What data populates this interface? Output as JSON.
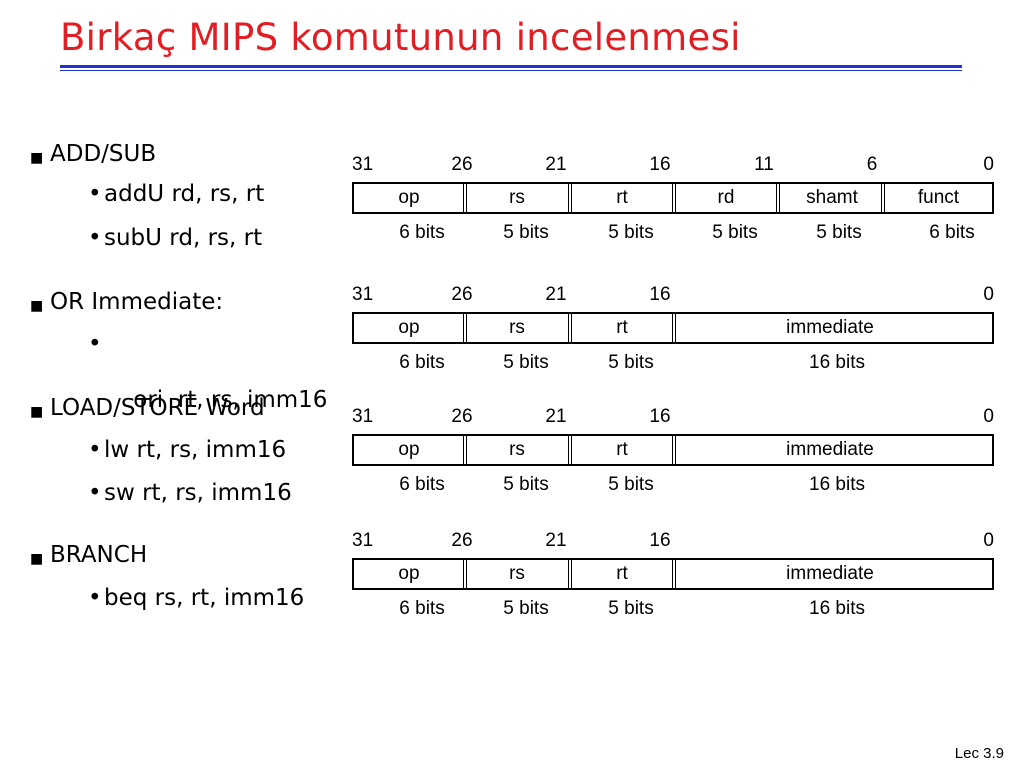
{
  "slide": {
    "title": "Birkaç MIPS komutunun incelenmesi",
    "accent_color": "#e21d24",
    "rule_color": "#1f32d0",
    "footer": "Lec 3.9"
  },
  "bullets": [
    {
      "label": "ADD/SUB",
      "subitems": [
        "addU rd, rs, rt",
        "subU rd, rs, rt"
      ]
    },
    {
      "label": "OR Immediate:",
      "subitems": [
        "ori  rt, rs, imm16"
      ]
    },
    {
      "label": "LOAD/STORE Word",
      "subitems": [
        "lw rt, rs, imm16",
        "sw rt, rs, imm16"
      ]
    },
    {
      "label": "BRANCH",
      "subitems": [
        "beq rs, rt, imm16"
      ]
    }
  ],
  "formats": [
    {
      "bit_positions": [
        "31",
        "26",
        "21",
        "16",
        "11",
        "6",
        "0"
      ],
      "fields": [
        {
          "name": "op",
          "bits": "6 bits"
        },
        {
          "name": "rs",
          "bits": "5 bits"
        },
        {
          "name": "rt",
          "bits": "5 bits"
        },
        {
          "name": "rd",
          "bits": "5 bits"
        },
        {
          "name": "shamt",
          "bits": "5 bits"
        },
        {
          "name": "funct",
          "bits": "6 bits"
        }
      ]
    },
    {
      "bit_positions": [
        "31",
        "26",
        "21",
        "16",
        "0"
      ],
      "fields": [
        {
          "name": "op",
          "bits": "6 bits"
        },
        {
          "name": "rs",
          "bits": "5 bits"
        },
        {
          "name": "rt",
          "bits": "5 bits"
        },
        {
          "name": "immediate",
          "bits": "16 bits"
        }
      ]
    },
    {
      "bit_positions": [
        "31",
        "26",
        "21",
        "16",
        "0"
      ],
      "fields": [
        {
          "name": "op",
          "bits": "6 bits"
        },
        {
          "name": "rs",
          "bits": "5 bits"
        },
        {
          "name": "rt",
          "bits": "5 bits"
        },
        {
          "name": "immediate",
          "bits": "16 bits"
        }
      ]
    },
    {
      "bit_positions": [
        "31",
        "26",
        "21",
        "16",
        "0"
      ],
      "fields": [
        {
          "name": "op",
          "bits": "6 bits"
        },
        {
          "name": "rs",
          "bits": "5 bits"
        },
        {
          "name": "rt",
          "bits": "5 bits"
        },
        {
          "name": "immediate",
          "bits": "16 bits"
        }
      ]
    }
  ]
}
